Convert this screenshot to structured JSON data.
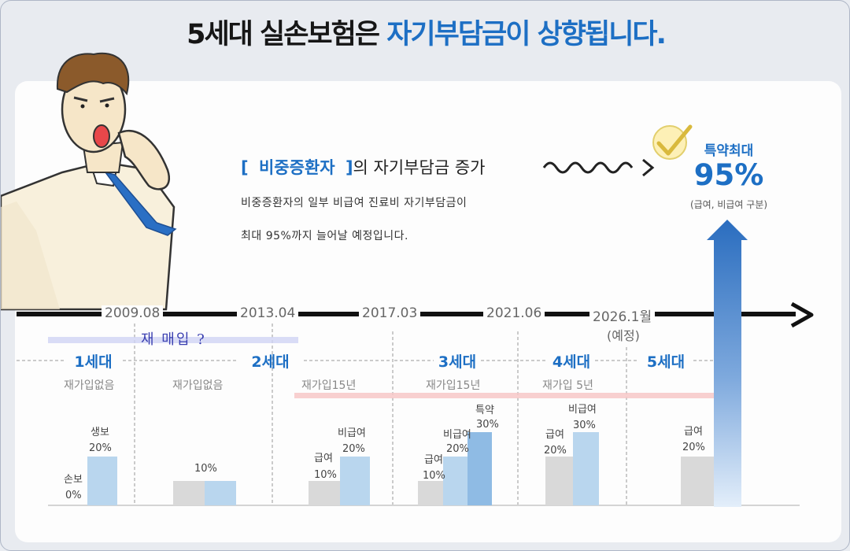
{
  "headline": {
    "part1": "5세대 실손보험은 ",
    "part2": "자기부담금이 상향됩니다."
  },
  "notice": {
    "bracket_open": "[",
    "subject": "비중증환자",
    "bracket_close": "]",
    "suffix": "의 자기부담금 증가",
    "line1": "비중증환자의 일부 비급여 진료비 자기부담금이",
    "line2": "최대 95%까지 늘어날 예정입니다."
  },
  "rider": {
    "label": "특약최대",
    "value": "95%",
    "note": "(급여, 비급여 구분)"
  },
  "rewrite_note": "재 매입 ?",
  "colors": {
    "accent": "#1d6fc4",
    "gray_bar": "#d9d9d9",
    "light_blue": "#b9d6ee",
    "mid_blue": "#8fbbe4",
    "arrow_top": "#2a6dbf",
    "arrow_bottom": "#e3eefa"
  },
  "chart_data": {
    "type": "bar",
    "timeline": [
      "2009.08",
      "2013.04",
      "2017.03",
      "2021.06",
      "2026.1월"
    ],
    "timeline_note": "(예정)",
    "generations": [
      {
        "name": "1세대",
        "rejoin": "재가입없음",
        "bars": [
          {
            "label": "손보",
            "value_label": "0%",
            "value": 0
          },
          {
            "label": "생보",
            "value_label": "20%",
            "value": 20
          }
        ]
      },
      {
        "name": "2세대",
        "rejoin": "재가입없음",
        "bars": [
          {
            "label": "",
            "value_label": "10%",
            "value": 10
          }
        ]
      },
      {
        "name": "",
        "rejoin": "재가입15년",
        "bars": [
          {
            "label": "급여",
            "value_label": "10%",
            "value": 10
          },
          {
            "label": "비급여",
            "value_label": "20%",
            "value": 20
          }
        ]
      },
      {
        "name": "3세대",
        "rejoin": "재가입15년",
        "bars": [
          {
            "label": "급여",
            "value_label": "10%",
            "value": 10
          },
          {
            "label": "비급여",
            "value_label": "20%",
            "value": 20
          },
          {
            "label": "특약",
            "value_label": "30%",
            "value": 30
          }
        ]
      },
      {
        "name": "4세대",
        "rejoin": "재가입 5년",
        "bars": [
          {
            "label": "급여",
            "value_label": "20%",
            "value": 20
          },
          {
            "label": "비급여",
            "value_label": "30%",
            "value": 30
          }
        ]
      },
      {
        "name": "5세대",
        "rejoin": "",
        "bars": [
          {
            "label": "급여",
            "value_label": "20%",
            "value": 20
          },
          {
            "label": "특약최대",
            "value_label": "95%",
            "value": 95
          }
        ]
      }
    ]
  }
}
